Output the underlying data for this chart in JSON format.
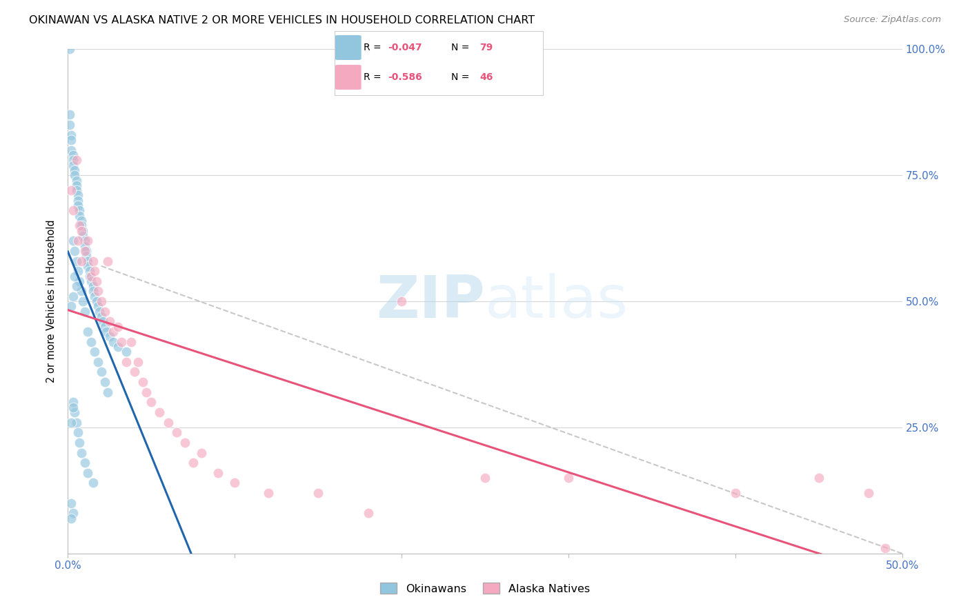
{
  "title": "OKINAWAN VS ALASKA NATIVE 2 OR MORE VEHICLES IN HOUSEHOLD CORRELATION CHART",
  "source": "Source: ZipAtlas.com",
  "ylabel": "2 or more Vehicles in Household",
  "xmin": 0.0,
  "xmax": 0.5,
  "ymin": 0.0,
  "ymax": 1.0,
  "color_blue": "#92c5de",
  "color_pink": "#f4a9c0",
  "color_blue_line": "#2166ac",
  "color_pink_line": "#e8537a",
  "color_dashed": "#bbbbbb",
  "background_color": "#ffffff",
  "legend_R_blue": "-0.047",
  "legend_N_blue": "79",
  "legend_R_pink": "-0.586",
  "legend_N_pink": "46",
  "blue_x": [
    0.001,
    0.001,
    0.001,
    0.002,
    0.002,
    0.002,
    0.003,
    0.003,
    0.003,
    0.004,
    0.004,
    0.005,
    0.005,
    0.005,
    0.006,
    0.006,
    0.006,
    0.007,
    0.007,
    0.008,
    0.008,
    0.009,
    0.009,
    0.01,
    0.01,
    0.011,
    0.011,
    0.012,
    0.012,
    0.013,
    0.013,
    0.014,
    0.015,
    0.015,
    0.016,
    0.017,
    0.018,
    0.019,
    0.02,
    0.021,
    0.022,
    0.023,
    0.025,
    0.027,
    0.03,
    0.035,
    0.003,
    0.004,
    0.005,
    0.006,
    0.007,
    0.008,
    0.009,
    0.01,
    0.012,
    0.014,
    0.016,
    0.018,
    0.02,
    0.022,
    0.024,
    0.003,
    0.004,
    0.005,
    0.006,
    0.007,
    0.008,
    0.01,
    0.012,
    0.015,
    0.002,
    0.003,
    0.004,
    0.005,
    0.002,
    0.002,
    0.003,
    0.002,
    0.003
  ],
  "blue_y": [
    1.0,
    0.87,
    0.85,
    0.83,
    0.82,
    0.8,
    0.79,
    0.78,
    0.77,
    0.76,
    0.75,
    0.74,
    0.73,
    0.72,
    0.71,
    0.7,
    0.69,
    0.68,
    0.67,
    0.66,
    0.65,
    0.64,
    0.63,
    0.62,
    0.61,
    0.6,
    0.59,
    0.58,
    0.57,
    0.56,
    0.55,
    0.54,
    0.53,
    0.52,
    0.51,
    0.5,
    0.49,
    0.48,
    0.47,
    0.46,
    0.45,
    0.44,
    0.43,
    0.42,
    0.41,
    0.4,
    0.62,
    0.6,
    0.58,
    0.56,
    0.54,
    0.52,
    0.5,
    0.48,
    0.44,
    0.42,
    0.4,
    0.38,
    0.36,
    0.34,
    0.32,
    0.3,
    0.28,
    0.26,
    0.24,
    0.22,
    0.2,
    0.18,
    0.16,
    0.14,
    0.1,
    0.08,
    0.55,
    0.53,
    0.07,
    0.26,
    0.51,
    0.49,
    0.29
  ],
  "pink_x": [
    0.002,
    0.003,
    0.005,
    0.006,
    0.007,
    0.008,
    0.008,
    0.01,
    0.012,
    0.014,
    0.015,
    0.016,
    0.017,
    0.018,
    0.02,
    0.022,
    0.024,
    0.025,
    0.027,
    0.03,
    0.032,
    0.035,
    0.038,
    0.04,
    0.042,
    0.045,
    0.047,
    0.05,
    0.055,
    0.06,
    0.065,
    0.07,
    0.075,
    0.08,
    0.09,
    0.1,
    0.12,
    0.15,
    0.18,
    0.2,
    0.25,
    0.3,
    0.4,
    0.45,
    0.48,
    0.49
  ],
  "pink_y": [
    0.72,
    0.68,
    0.78,
    0.62,
    0.65,
    0.64,
    0.58,
    0.6,
    0.62,
    0.55,
    0.58,
    0.56,
    0.54,
    0.52,
    0.5,
    0.48,
    0.58,
    0.46,
    0.44,
    0.45,
    0.42,
    0.38,
    0.42,
    0.36,
    0.38,
    0.34,
    0.32,
    0.3,
    0.28,
    0.26,
    0.24,
    0.22,
    0.18,
    0.2,
    0.16,
    0.14,
    0.12,
    0.12,
    0.08,
    0.5,
    0.15,
    0.15,
    0.12,
    0.15,
    0.12,
    0.01
  ]
}
